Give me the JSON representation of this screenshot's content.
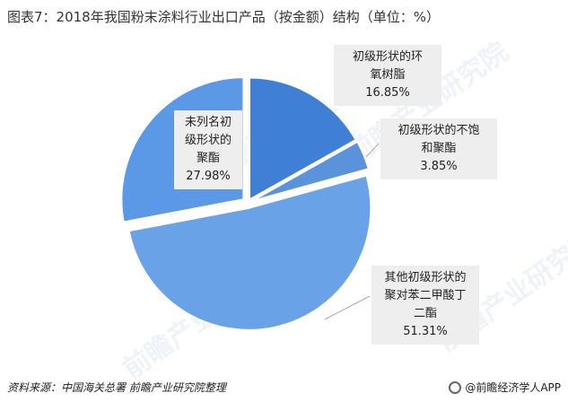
{
  "header": {
    "title": "图表7：2018年我国粉末涂料行业出口产品（按金额）结构（单位：%）"
  },
  "chart_data": {
    "type": "pie",
    "slices": [
      {
        "label_lines": [
          "初级形状的环",
          "氧树脂"
        ],
        "value": 16.85,
        "value_label": "16.85%",
        "color": "#3f80d6"
      },
      {
        "label_lines": [
          "初级形状的不饱",
          "和聚酯"
        ],
        "value": 3.85,
        "value_label": "3.85%",
        "color": "#5a93dc"
      },
      {
        "label_lines": [
          "其他初级形状的",
          "聚对苯二甲酸丁",
          "二酯"
        ],
        "value": 51.31,
        "value_label": "51.31%",
        "color": "#6aa2e8"
      },
      {
        "label_lines": [
          "未列名初",
          "级形状的",
          "聚酯"
        ],
        "value": 27.98,
        "value_label": "27.98%",
        "color": "#5b99e6"
      }
    ]
  },
  "watermark": {
    "text": "前瞻产业研究院"
  },
  "footer": {
    "source": "资料来源：中国海关总署 前瞻产业研究院整理",
    "brand": "@前瞻经济学人APP"
  }
}
